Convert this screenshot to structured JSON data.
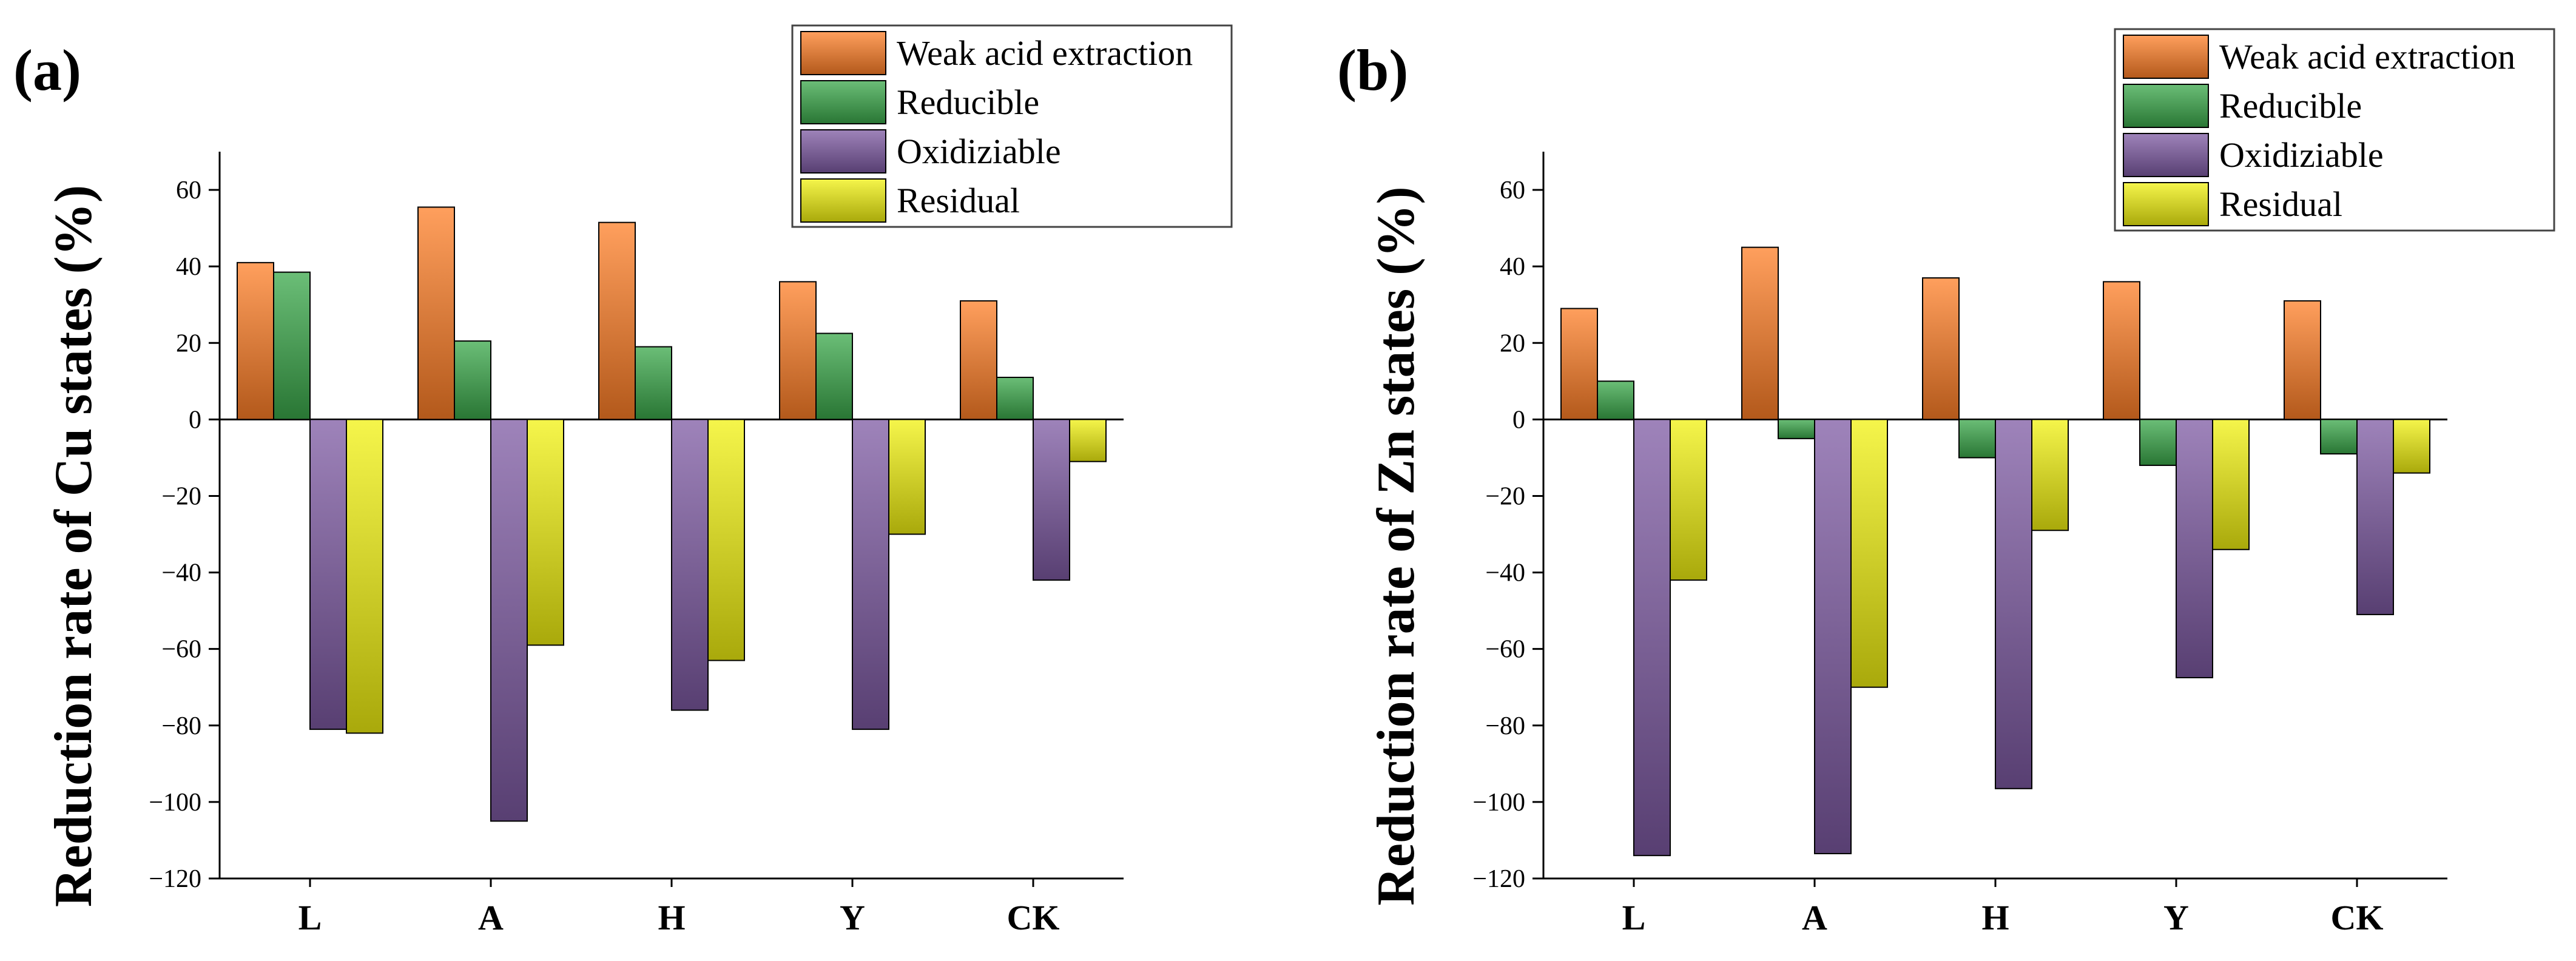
{
  "colors": {
    "weak_acid": "#ff7f27",
    "reducible": "#3aa84a",
    "oxidizable": "#7d5aa3",
    "residual": "#f2f20f"
  },
  "chart_data": [
    {
      "type": "bar",
      "panel": "(a)",
      "ylabel": "Reduction rate of Cu states (%)",
      "xlabel": "",
      "ylim": [
        -120,
        70
      ],
      "yticks": [
        -120,
        -100,
        -80,
        -60,
        -40,
        -20,
        0,
        20,
        40,
        60
      ],
      "categories": [
        "L",
        "A",
        "H",
        "Y",
        "CK"
      ],
      "legend_position": "top-right",
      "series": [
        {
          "name": "Weak acid extraction",
          "values": [
            41,
            55.5,
            51.5,
            36,
            31
          ]
        },
        {
          "name": "Reducible",
          "values": [
            38.5,
            20.5,
            19,
            22.5,
            11
          ]
        },
        {
          "name": "Oxidiziable",
          "values": [
            -81,
            -105,
            -76,
            -81,
            -42
          ]
        },
        {
          "name": "Residual",
          "values": [
            -82,
            -59,
            -63,
            -30,
            -11
          ]
        }
      ]
    },
    {
      "type": "bar",
      "panel": "(b)",
      "ylabel": "Reduction rate of Zn states (%)",
      "xlabel": "",
      "ylim": [
        -120,
        70
      ],
      "yticks": [
        -120,
        -100,
        -80,
        -60,
        -40,
        -20,
        0,
        20,
        40,
        60
      ],
      "categories": [
        "L",
        "A",
        "H",
        "Y",
        "CK"
      ],
      "legend_position": "top-right",
      "series": [
        {
          "name": "Weak acid extraction",
          "values": [
            29,
            45,
            37,
            36,
            31
          ]
        },
        {
          "name": "Reducible",
          "values": [
            10,
            -5,
            -10,
            -12,
            -9
          ]
        },
        {
          "name": "Oxidiziable",
          "values": [
            -114,
            -113.5,
            -96.5,
            -67.5,
            -51
          ]
        },
        {
          "name": "Residual",
          "values": [
            -42,
            -70,
            -29,
            -34,
            -14
          ]
        }
      ]
    }
  ]
}
